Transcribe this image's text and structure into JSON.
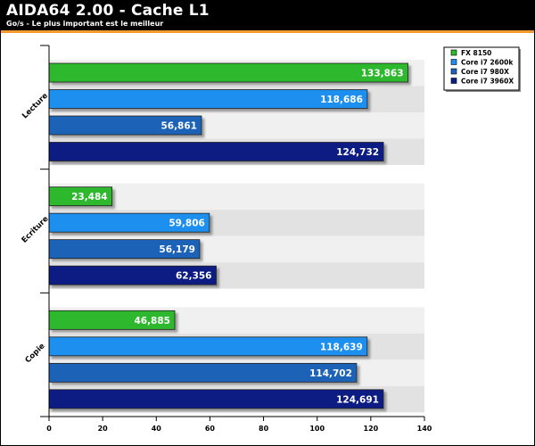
{
  "header": {
    "title": "AIDA64 2.00 - Cache L1",
    "subtitle": "Go/s - Le plus important est le meilleur"
  },
  "colors": {
    "header_bg": "#000000",
    "accent": "#f29a2e",
    "band_light": "#f0f0f0",
    "band_dark": "#e2e2e2"
  },
  "chart_data": {
    "type": "bar",
    "orientation": "horizontal",
    "title": "AIDA64 2.00 - Cache L1",
    "subtitle": "Go/s - Le plus important est le meilleur",
    "categories": [
      "Lecture",
      "Ecriture",
      "Copie"
    ],
    "xlim": [
      0,
      140
    ],
    "xticks": [
      0,
      20,
      40,
      60,
      80,
      100,
      120,
      140
    ],
    "grid": false,
    "legend_position": "top-right",
    "series": [
      {
        "name": "FX 8150",
        "color": "#2db82d",
        "values": [
          133.863,
          23.484,
          46.885
        ],
        "labels": [
          "133,863",
          "23,484",
          "46,885"
        ]
      },
      {
        "name": "Core i7 2600k",
        "color": "#1f8fef",
        "values": [
          118.686,
          59.806,
          118.639
        ],
        "labels": [
          "118,686",
          "59,806",
          "118,639"
        ]
      },
      {
        "name": "Core i7 980X",
        "color": "#1a63b8",
        "values": [
          56.861,
          56.179,
          114.702
        ],
        "labels": [
          "56,861",
          "56,179",
          "114,702"
        ]
      },
      {
        "name": "Core i7 3960X",
        "color": "#0a1f82",
        "values": [
          124.732,
          62.356,
          124.691
        ],
        "labels": [
          "124,732",
          "62,356",
          "124,691"
        ]
      }
    ]
  }
}
